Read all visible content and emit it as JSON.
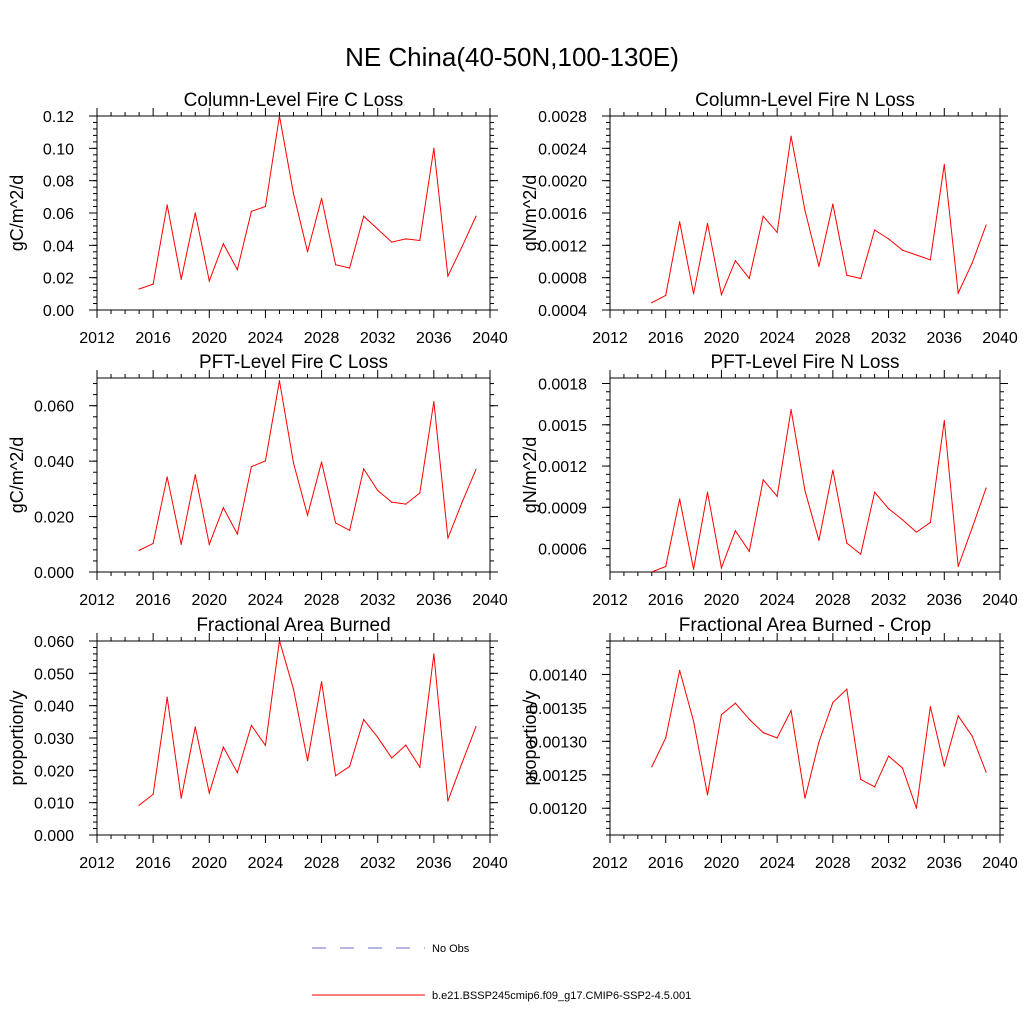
{
  "figure": {
    "title": "NE China(40-50N,100-130E)"
  },
  "legend": {
    "items": [
      {
        "label": "No Obs",
        "color": "#6f6fcf",
        "style": "dashed"
      },
      {
        "label": "b.e21.BSSP245cmip6.f09_g17.CMIP6-SSP2-4.5.001",
        "color": "#ff0000",
        "style": "solid"
      }
    ]
  },
  "chart_data": [
    {
      "type": "line",
      "title": "Column-Level Fire C Loss",
      "ylabel": "gC/m^2/d",
      "xlabel": "",
      "xlim": [
        2012,
        2040
      ],
      "ylim": [
        0.0,
        0.12
      ],
      "xticks": [
        "2012",
        "2016",
        "2020",
        "2024",
        "2028",
        "2032",
        "2036",
        "2040"
      ],
      "yticks": [
        "0.00",
        "0.02",
        "0.04",
        "0.06",
        "0.08",
        "0.10",
        "0.12"
      ],
      "x": [
        2015,
        2016,
        2017,
        2018,
        2019,
        2020,
        2021,
        2022,
        2023,
        2024,
        2025,
        2026,
        2027,
        2028,
        2029,
        2030,
        2031,
        2032,
        2033,
        2034,
        2035,
        2036,
        2037,
        2038,
        2039
      ],
      "series": [
        {
          "color": "#ff0000",
          "values": [
            0.013,
            0.016,
            0.065,
            0.019,
            0.06,
            0.018,
            0.041,
            0.025,
            0.061,
            0.064,
            0.12,
            0.072,
            0.036,
            0.069,
            0.028,
            0.026,
            0.058,
            0.05,
            0.042,
            0.044,
            0.043,
            0.1,
            0.021,
            0.039,
            0.058
          ]
        }
      ]
    },
    {
      "type": "line",
      "title": "Column-Level Fire N Loss",
      "ylabel": "gN/m^2/d",
      "xlabel": "",
      "xlim": [
        2012,
        2040
      ],
      "ylim": [
        0.0004,
        0.0028
      ],
      "xticks": [
        "2012",
        "2016",
        "2020",
        "2024",
        "2028",
        "2032",
        "2036",
        "2040"
      ],
      "yticks": [
        "0.0004",
        "0.0008",
        "0.0012",
        "0.0016",
        "0.0020",
        "0.0024",
        "0.0028"
      ],
      "x": [
        2015,
        2016,
        2017,
        2018,
        2019,
        2020,
        2021,
        2022,
        2023,
        2024,
        2025,
        2026,
        2027,
        2028,
        2029,
        2030,
        2031,
        2032,
        2033,
        2034,
        2035,
        2036,
        2037,
        2038,
        2039
      ],
      "series": [
        {
          "color": "#ff0000",
          "values": [
            0.00049,
            0.00058,
            0.00149,
            0.0006,
            0.00147,
            0.00059,
            0.00101,
            0.00079,
            0.00156,
            0.00136,
            0.00255,
            0.00163,
            0.00094,
            0.00171,
            0.00083,
            0.00079,
            0.00139,
            0.00128,
            0.00114,
            0.00108,
            0.00102,
            0.0022,
            0.00061,
            0.00098,
            0.00145
          ]
        }
      ]
    },
    {
      "type": "line",
      "title": "PFT-Level Fire C Loss",
      "ylabel": "gC/m^2/d",
      "xlabel": "",
      "xlim": [
        2012,
        2040
      ],
      "ylim": [
        0.0,
        0.07
      ],
      "xticks": [
        "2012",
        "2016",
        "2020",
        "2024",
        "2028",
        "2032",
        "2036",
        "2040"
      ],
      "yticks": [
        "0.000",
        "0.020",
        "0.040",
        "0.060"
      ],
      "ytick_values": [
        0.0,
        0.02,
        0.04,
        0.06
      ],
      "x": [
        2015,
        2016,
        2017,
        2018,
        2019,
        2020,
        2021,
        2022,
        2023,
        2024,
        2025,
        2026,
        2027,
        2028,
        2029,
        2030,
        2031,
        2032,
        2033,
        2034,
        2035,
        2036,
        2037,
        2038,
        2039
      ],
      "series": [
        {
          "color": "#ff0000",
          "values": [
            0.0078,
            0.0103,
            0.0343,
            0.01,
            0.0351,
            0.01,
            0.0232,
            0.0137,
            0.038,
            0.0401,
            0.069,
            0.0393,
            0.0205,
            0.0397,
            0.0177,
            0.015,
            0.0372,
            0.0294,
            0.0252,
            0.0245,
            0.0285,
            0.0615,
            0.0122,
            0.025,
            0.037
          ]
        }
      ]
    },
    {
      "type": "line",
      "title": "PFT-Level Fire N Loss",
      "ylabel": "gN/m^2/d",
      "xlabel": "",
      "xlim": [
        2012,
        2040
      ],
      "ylim": [
        0.00043,
        0.00184
      ],
      "xticks": [
        "2012",
        "2016",
        "2020",
        "2024",
        "2028",
        "2032",
        "2036",
        "2040"
      ],
      "yticks": [
        "0.0006",
        "0.0009",
        "0.0012",
        "0.0015",
        "0.0018"
      ],
      "ytick_values": [
        0.0006,
        0.0009,
        0.0012,
        0.0015,
        0.0018
      ],
      "x": [
        2015,
        2016,
        2017,
        2018,
        2019,
        2020,
        2021,
        2022,
        2023,
        2024,
        2025,
        2026,
        2027,
        2028,
        2029,
        2030,
        2031,
        2032,
        2033,
        2034,
        2035,
        2036,
        2037,
        2038,
        2039
      ],
      "series": [
        {
          "color": "#ff0000",
          "values": [
            0.00043,
            0.00047,
            0.00096,
            0.00045,
            0.00101,
            0.00046,
            0.00073,
            0.00058,
            0.0011,
            0.00098,
            0.00161,
            0.00102,
            0.00066,
            0.00117,
            0.00064,
            0.00056,
            0.00101,
            0.00089,
            0.00081,
            0.00072,
            0.00079,
            0.00153,
            0.00047,
            0.00075,
            0.00104
          ]
        }
      ]
    },
    {
      "type": "line",
      "title": "Fractional Area Burned",
      "ylabel": "proportion/y",
      "xlabel": "",
      "xlim": [
        2012,
        2040
      ],
      "ylim": [
        0.0,
        0.06
      ],
      "xticks": [
        "2012",
        "2016",
        "2020",
        "2024",
        "2028",
        "2032",
        "2036",
        "2040"
      ],
      "yticks": [
        "0.000",
        "0.010",
        "0.020",
        "0.030",
        "0.040",
        "0.050",
        "0.060"
      ],
      "x": [
        2015,
        2016,
        2017,
        2018,
        2019,
        2020,
        2021,
        2022,
        2023,
        2024,
        2025,
        2026,
        2027,
        2028,
        2029,
        2030,
        2031,
        2032,
        2033,
        2034,
        2035,
        2036,
        2037,
        2038,
        2039
      ],
      "series": [
        {
          "color": "#ff0000",
          "values": [
            0.0092,
            0.0126,
            0.0426,
            0.0114,
            0.0334,
            0.013,
            0.0272,
            0.0193,
            0.0339,
            0.0277,
            0.0601,
            0.0451,
            0.023,
            0.0474,
            0.0183,
            0.0212,
            0.0357,
            0.0302,
            0.0238,
            0.0278,
            0.021,
            0.056,
            0.0105,
            0.0222,
            0.0335
          ]
        }
      ]
    },
    {
      "type": "line",
      "title": "Fractional Area Burned - Crop",
      "ylabel": "proportion/y",
      "xlabel": "",
      "xlim": [
        2012,
        2040
      ],
      "ylim": [
        0.00116,
        0.00145
      ],
      "xticks": [
        "2012",
        "2016",
        "2020",
        "2024",
        "2028",
        "2032",
        "2036",
        "2040"
      ],
      "yticks": [
        "0.00120",
        "0.00125",
        "0.00130",
        "0.00135",
        "0.00140"
      ],
      "ytick_values": [
        0.0012,
        0.00125,
        0.0013,
        0.00135,
        0.0014
      ],
      "x": [
        2015,
        2016,
        2017,
        2018,
        2019,
        2020,
        2021,
        2022,
        2023,
        2024,
        2025,
        2026,
        2027,
        2028,
        2029,
        2030,
        2031,
        2032,
        2033,
        2034,
        2035,
        2036,
        2037,
        2038,
        2039
      ],
      "series": [
        {
          "color": "#ff0000",
          "values": [
            0.001262,
            0.001305,
            0.001406,
            0.00133,
            0.00122,
            0.00134,
            0.001357,
            0.001333,
            0.001313,
            0.001305,
            0.001346,
            0.001215,
            0.001299,
            0.001358,
            0.001378,
            0.001243,
            0.001232,
            0.001278,
            0.00126,
            0.0012,
            0.001352,
            0.001263,
            0.001338,
            0.001308,
            0.001254
          ]
        }
      ]
    }
  ]
}
